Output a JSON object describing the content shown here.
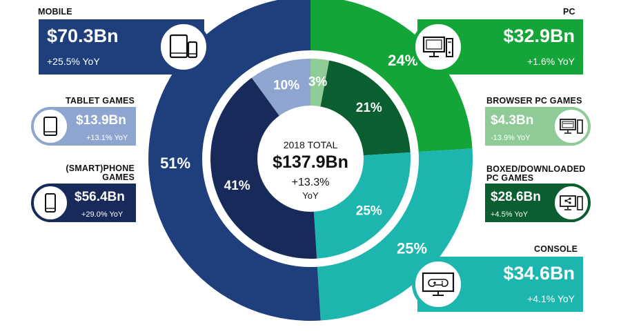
{
  "chart_data": {
    "type": "pie",
    "center": {
      "line1": "2018 TOTAL",
      "total": "$137.9Bn",
      "growth": "+13.3%",
      "yoy": "YoY"
    },
    "outer_ring": [
      {
        "name": "PC",
        "pct": 24,
        "label": "24%",
        "color": "#13a538"
      },
      {
        "name": "CONSOLE",
        "pct": 25,
        "label": "25%",
        "color": "#1db6ae"
      },
      {
        "name": "MOBILE",
        "pct": 51,
        "label": "51%",
        "color": "#1e3f7c"
      }
    ],
    "inner_ring": [
      {
        "name": "BROWSER PC GAMES",
        "pct": 3,
        "label": "3%",
        "color": "#8ecb96"
      },
      {
        "name": "BOXED/DOWNLOADED PC GAMES",
        "pct": 21,
        "label": "21%",
        "color": "#0b5e30"
      },
      {
        "name": "CONSOLE",
        "pct": 25,
        "label": "25%",
        "color": "#1db6ae"
      },
      {
        "name": "(SMART)PHONE GAMES",
        "pct": 41,
        "label": "41%",
        "color": "#172a5a"
      },
      {
        "name": "TABLET GAMES",
        "pct": 10,
        "label": "10%",
        "color": "#8ea6cf"
      }
    ]
  },
  "callouts": {
    "mobile": {
      "title": "MOBILE",
      "value": "$70.3Bn",
      "yoy": "+25.5% YoY",
      "icon": "tablet-phone-icon"
    },
    "tablet": {
      "title": "TABLET GAMES",
      "value": "$13.9Bn",
      "yoy": "+13.1% YoY",
      "icon": "tablet-icon"
    },
    "phone": {
      "title": "(SMART)PHONE\nGAMES",
      "value": "$56.4Bn",
      "yoy": "+29.0% YoY",
      "icon": "smartphone-icon"
    },
    "pc": {
      "title": "PC",
      "value": "$32.9Bn",
      "yoy": "+1.6% YoY",
      "icon": "desktop-computer-icon"
    },
    "browser": {
      "title": "BROWSER PC GAMES",
      "value": "$4.3Bn",
      "yoy": "-13.9% YoY",
      "icon": "browser-computer-icon"
    },
    "boxed": {
      "title": "BOXED/DOWNLOADED\nPC GAMES",
      "value": "$28.6Bn",
      "yoy": "+4.5% YoY",
      "icon": "download-computer-icon"
    },
    "console": {
      "title": "CONSOLE",
      "value": "$34.6Bn",
      "yoy": "+4.1% YoY",
      "icon": "tv-gamepad-icon"
    }
  }
}
